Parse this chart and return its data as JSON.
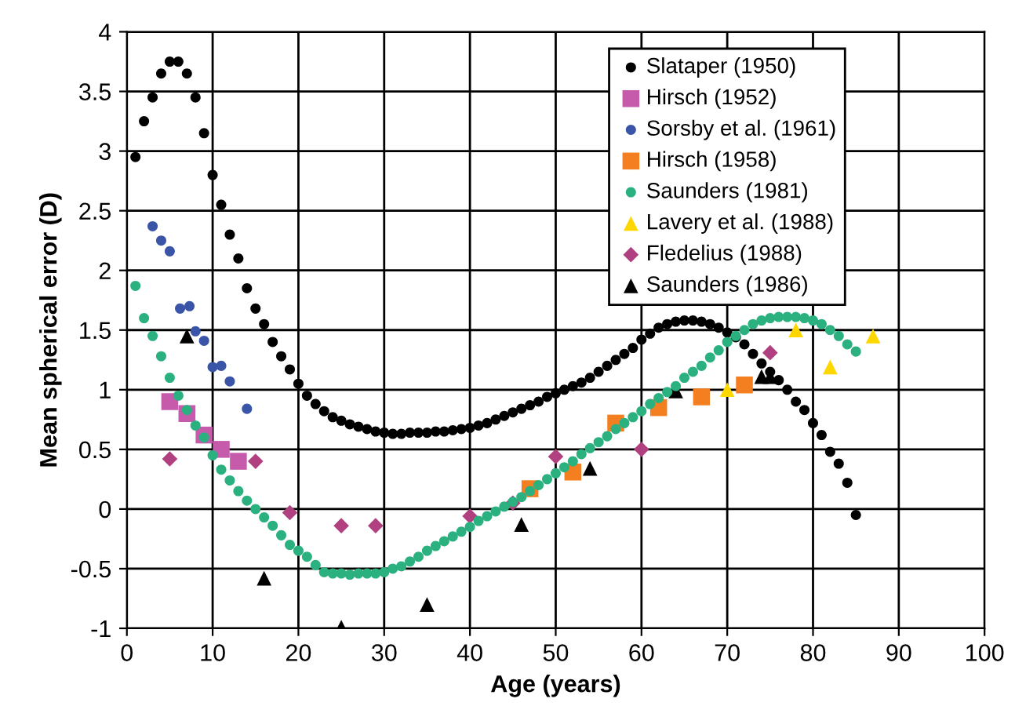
{
  "chart_data": {
    "type": "scatter",
    "xlabel": "Age (years)",
    "ylabel": "Mean spherical error (D)",
    "xlim": [
      0,
      100
    ],
    "ylim": [
      -1,
      4
    ],
    "xticks": [
      0,
      10,
      20,
      30,
      40,
      50,
      60,
      70,
      80,
      90,
      100
    ],
    "yticks": [
      -1,
      -0.5,
      0,
      0.5,
      1,
      1.5,
      2,
      2.5,
      3,
      3.5,
      4
    ],
    "grid": true,
    "legend": "top right",
    "series": [
      {
        "name": "Slataper (1950)",
        "color": "#000000",
        "marker": "circle",
        "x": [
          1,
          2,
          3,
          4,
          5,
          6,
          7,
          8,
          9,
          10,
          11,
          12,
          13,
          14,
          15,
          16,
          17,
          18,
          19,
          20,
          21,
          22,
          23,
          24,
          25,
          26,
          27,
          28,
          29,
          30,
          31,
          32,
          33,
          34,
          35,
          36,
          37,
          38,
          39,
          40,
          41,
          42,
          43,
          44,
          45,
          46,
          47,
          48,
          49,
          50,
          51,
          52,
          53,
          54,
          55,
          56,
          57,
          58,
          59,
          60,
          61,
          62,
          63,
          64,
          65,
          66,
          67,
          68,
          69,
          70,
          71,
          72,
          73,
          74,
          75,
          76,
          77,
          78,
          79,
          80,
          81,
          82,
          83,
          84,
          85
        ],
        "values": [
          2.95,
          3.25,
          3.45,
          3.65,
          3.75,
          3.75,
          3.65,
          3.45,
          3.15,
          2.8,
          2.55,
          2.3,
          2.1,
          1.85,
          1.68,
          1.55,
          1.4,
          1.28,
          1.17,
          1.05,
          0.95,
          0.88,
          0.82,
          0.77,
          0.74,
          0.71,
          0.69,
          0.67,
          0.65,
          0.64,
          0.63,
          0.63,
          0.64,
          0.64,
          0.64,
          0.65,
          0.65,
          0.66,
          0.67,
          0.68,
          0.7,
          0.72,
          0.75,
          0.78,
          0.81,
          0.84,
          0.87,
          0.9,
          0.94,
          0.97,
          1.0,
          1.03,
          1.06,
          1.1,
          1.15,
          1.2,
          1.25,
          1.3,
          1.35,
          1.42,
          1.47,
          1.52,
          1.55,
          1.57,
          1.58,
          1.58,
          1.57,
          1.55,
          1.52,
          1.48,
          1.44,
          1.38,
          1.3,
          1.22,
          1.15,
          1.08,
          1.0,
          0.9,
          0.83,
          0.72,
          0.62,
          0.48,
          0.38,
          0.22,
          -0.05
        ]
      },
      {
        "name": "Hirsch (1952)",
        "color": "#c65bac",
        "marker": "square",
        "x": [
          5,
          7,
          9,
          11,
          13
        ],
        "values": [
          0.9,
          0.8,
          0.62,
          0.5,
          0.4
        ]
      },
      {
        "name": "Sorsby et al. (1961)",
        "color": "#3a55a8",
        "marker": "circle",
        "x": [
          3,
          4,
          5,
          6.2,
          7.3,
          8,
          9,
          10,
          11,
          12,
          14
        ],
        "values": [
          2.37,
          2.25,
          2.16,
          1.68,
          1.7,
          1.49,
          1.41,
          1.19,
          1.2,
          1.07,
          0.84
        ]
      },
      {
        "name": "Hirsch (1958)",
        "color": "#f47f20",
        "marker": "square",
        "x": [
          47,
          52,
          57,
          62,
          67,
          72
        ],
        "values": [
          0.17,
          0.31,
          0.72,
          0.85,
          0.94,
          1.04
        ]
      },
      {
        "name": "Saunders (1981)",
        "color": "#2bb07f",
        "marker": "circle",
        "x": [
          1,
          2,
          3,
          4,
          5,
          6,
          7,
          8,
          9,
          10,
          11,
          12,
          13,
          14,
          15,
          16,
          17,
          18,
          19,
          20,
          21,
          22,
          23,
          24,
          25,
          26,
          27,
          28,
          29,
          30,
          31,
          32,
          33,
          34,
          35,
          36,
          37,
          38,
          39,
          40,
          41,
          42,
          43,
          44,
          45,
          46,
          47,
          48,
          49,
          50,
          51,
          52,
          53,
          54,
          55,
          56,
          57,
          58,
          59,
          60,
          61,
          62,
          63,
          64,
          65,
          66,
          67,
          68,
          69,
          70,
          71,
          72,
          73,
          74,
          75,
          76,
          77,
          78,
          79,
          80,
          81,
          82,
          83,
          84,
          85
        ],
        "values": [
          1.87,
          1.6,
          1.45,
          1.28,
          1.1,
          0.95,
          0.83,
          0.7,
          0.6,
          0.45,
          0.33,
          0.24,
          0.15,
          0.07,
          0.0,
          -0.07,
          -0.14,
          -0.22,
          -0.3,
          -0.35,
          -0.4,
          -0.47,
          -0.53,
          -0.54,
          -0.54,
          -0.55,
          -0.54,
          -0.54,
          -0.54,
          -0.53,
          -0.5,
          -0.48,
          -0.44,
          -0.4,
          -0.35,
          -0.31,
          -0.27,
          -0.23,
          -0.19,
          -0.15,
          -0.1,
          -0.06,
          -0.02,
          0.02,
          0.06,
          0.1,
          0.15,
          0.2,
          0.25,
          0.3,
          0.35,
          0.4,
          0.46,
          0.51,
          0.56,
          0.61,
          0.67,
          0.72,
          0.77,
          0.82,
          0.88,
          0.93,
          0.98,
          1.03,
          1.1,
          1.15,
          1.2,
          1.27,
          1.33,
          1.4,
          1.45,
          1.5,
          1.55,
          1.58,
          1.6,
          1.61,
          1.61,
          1.61,
          1.6,
          1.58,
          1.55,
          1.5,
          1.45,
          1.38,
          1.32
        ]
      },
      {
        "name": "Lavery et al. (1988)",
        "color": "#ffd700",
        "marker": "triangle",
        "x": [
          70,
          78,
          82,
          87
        ],
        "values": [
          1.0,
          1.5,
          1.19,
          1.45
        ]
      },
      {
        "name": "Fledelius (1988)",
        "color": "#b0407f",
        "marker": "diamond",
        "x": [
          5,
          15,
          19,
          25,
          29,
          40,
          45,
          50,
          60,
          75
        ],
        "values": [
          0.42,
          0.4,
          -0.03,
          -0.14,
          -0.14,
          -0.06,
          0.05,
          0.44,
          0.5,
          1.31
        ]
      },
      {
        "name": "Saunders (1986)",
        "color": "#000000",
        "marker": "triangle",
        "x": [
          7,
          16,
          25,
          35,
          46,
          54,
          64,
          74,
          75
        ],
        "values": [
          1.45,
          -0.58,
          -0.99,
          -0.8,
          -0.13,
          0.34,
          0.99,
          1.11,
          1.11
        ]
      }
    ]
  }
}
